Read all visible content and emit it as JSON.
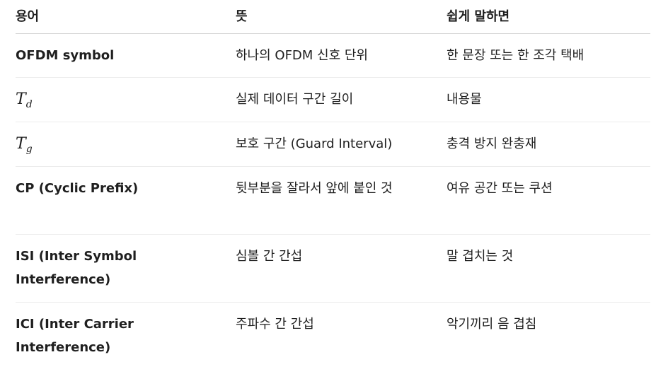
{
  "headers": {
    "term": "용어",
    "meaning": "뜻",
    "simple": "쉽게 말하면"
  },
  "rows": [
    {
      "term": "OFDM symbol",
      "meaning": "하나의 OFDM 신호 단위",
      "simple": "한 문장 또는 한 조각 택배"
    },
    {
      "term_base": "T",
      "term_sub": "d",
      "meaning": "실제 데이터 구간 길이",
      "simple": "내용물"
    },
    {
      "term_base": "T",
      "term_sub": "g",
      "meaning": "보호 구간 (Guard Interval)",
      "simple": "충격 방지 완충재"
    },
    {
      "term": "CP (Cyclic Prefix)",
      "meaning": "뒷부분을 잘라서 앞에 붙인 것",
      "simple": "여유 공간 또는 쿠션"
    },
    {
      "term": "ISI (Inter Symbol Interference)",
      "meaning": "심볼 간 간섭",
      "simple": "말 겹치는 것"
    },
    {
      "term": "ICI (Inter Carrier Interference)",
      "meaning": "주파수 간 간섭",
      "simple": "악기끼리 음 겹침"
    }
  ]
}
